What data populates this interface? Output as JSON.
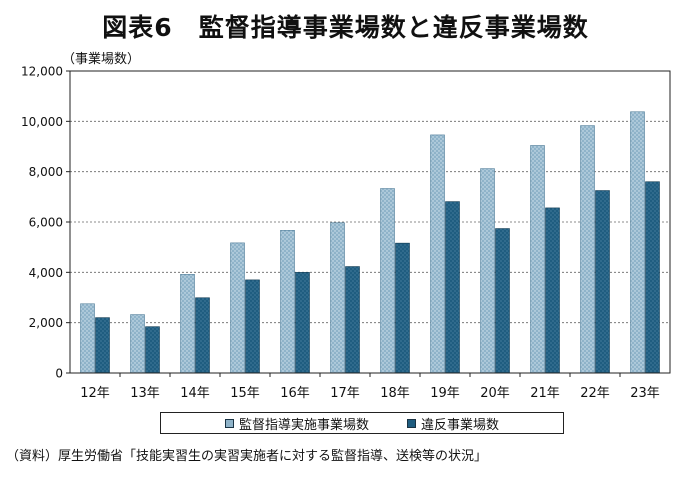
{
  "title": "図表6　監督指導事業場数と違反事業場数",
  "unit": "（事業場数）",
  "source": "（資料）厚生労働省「技能実習生の実習実施者に対する監督指導、送検等の状況」",
  "colors": {
    "series_1": "#8fb3c9",
    "series_2": "#1f5d80",
    "axis": "#222222",
    "grid": "#666666"
  },
  "chart_data": {
    "type": "bar",
    "title": "図表6　監督指導事業場数と違反事業場数",
    "xlabel": "",
    "ylabel": "（事業場数）",
    "categories": [
      "12年",
      "13年",
      "14年",
      "15年",
      "16年",
      "17年",
      "18年",
      "19年",
      "20年",
      "21年",
      "22年",
      "23年"
    ],
    "series": [
      {
        "name": "監督指導実施事業場数",
        "values": [
          2750,
          2320,
          3920,
          5170,
          5670,
          5970,
          7330,
          9460,
          8120,
          9040,
          9830,
          10380
        ]
      },
      {
        "name": "違反事業場数",
        "values": [
          2200,
          1840,
          2990,
          3700,
          4000,
          4230,
          5160,
          6810,
          5740,
          6560,
          7250,
          7600
        ]
      }
    ],
    "ylim": [
      0,
      12000
    ],
    "yticks": [
      0,
      2000,
      4000,
      6000,
      8000,
      10000,
      12000
    ],
    "ytick_labels": [
      "0",
      "2,000",
      "4,000",
      "6,000",
      "8,000",
      "10,000",
      "12,000"
    ],
    "grid": true,
    "legend_placement": "bottom-center"
  }
}
